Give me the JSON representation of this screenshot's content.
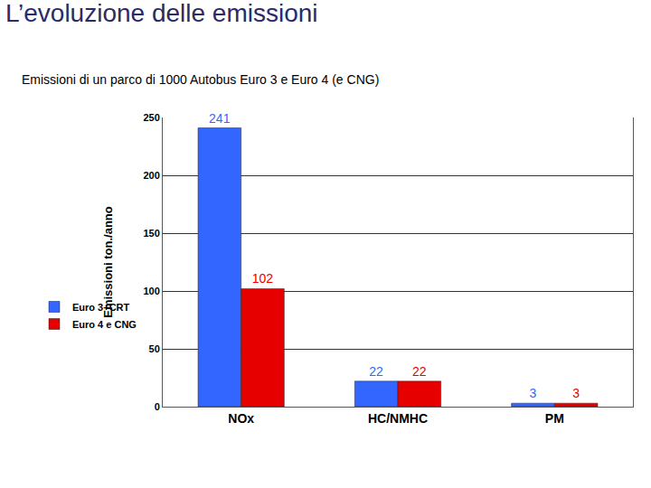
{
  "chart_data": {
    "type": "bar",
    "title": "L’evoluzione delle emissioni",
    "subtitle": "Emissioni di un parco di 1000 Autobus Euro 3 e Euro 4 (e CNG)",
    "y_label": "Emissioni ton./anno",
    "categories": [
      "NOx",
      "HC/NMHC",
      "PM"
    ],
    "series": [
      {
        "name": "Euro 3+CRT",
        "color": "#3366ff",
        "values": [
          241,
          22,
          3
        ]
      },
      {
        "name": "Euro 4 e CNG",
        "color": "#e60000",
        "values": [
          102,
          22,
          3
        ]
      }
    ],
    "ylim": [
      0,
      250
    ],
    "yticks": [
      0,
      50,
      100,
      150,
      200,
      250
    ],
    "grid": true,
    "legend": "left",
    "data_labels": true
  }
}
